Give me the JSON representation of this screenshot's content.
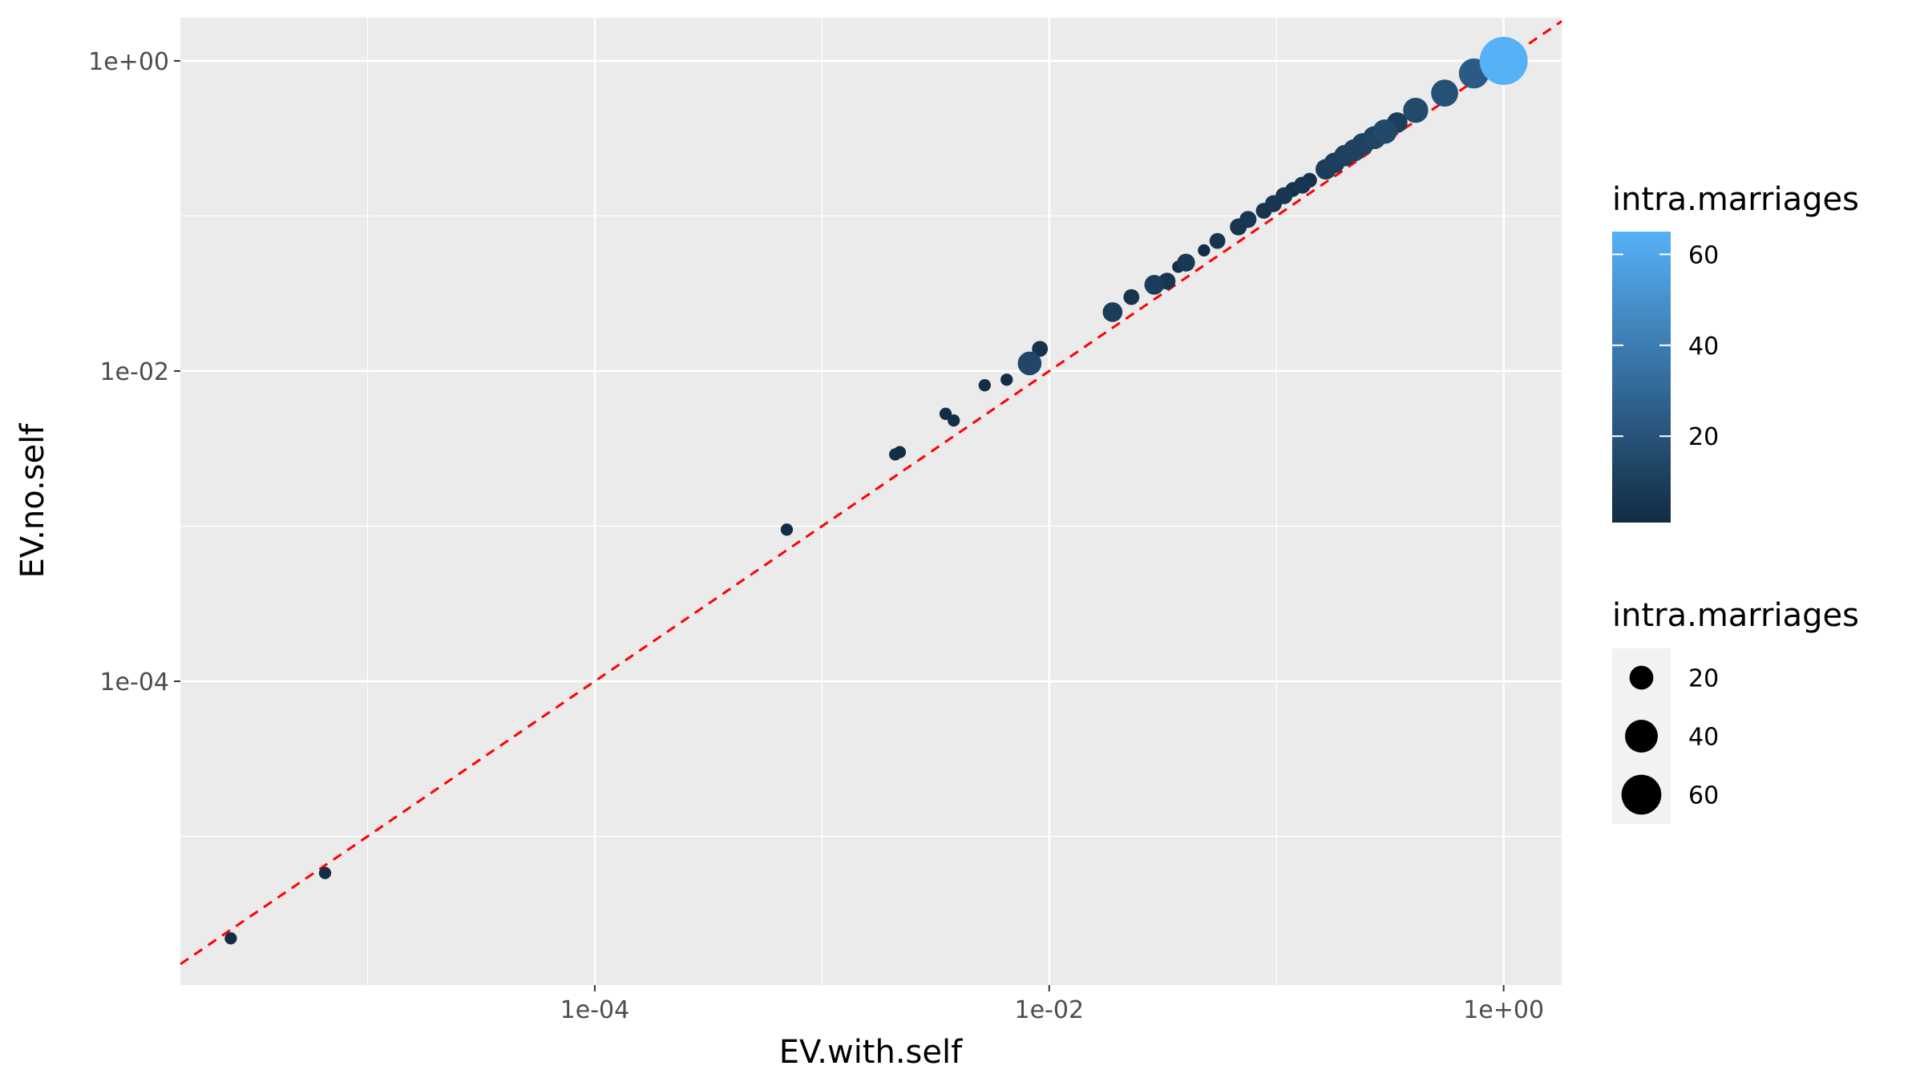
{
  "chart_data": {
    "type": "scatter",
    "xlabel": "EV.with.self",
    "ylabel": "EV.no.self",
    "x_scale": "log10",
    "y_scale": "log10",
    "xlim": [
      1.5e-06,
      1.8
    ],
    "ylim": [
      1.1e-06,
      1.9
    ],
    "x_ticks": [
      {
        "value": 0.0001,
        "label": "1e-04"
      },
      {
        "value": 0.01,
        "label": "1e-02"
      },
      {
        "value": 1,
        "label": "1e+00"
      }
    ],
    "y_ticks": [
      {
        "value": 0.0001,
        "label": "1e-04"
      },
      {
        "value": 0.01,
        "label": "1e-02"
      },
      {
        "value": 1,
        "label": "1e+00"
      }
    ],
    "grid": true,
    "reference_line": {
      "type": "identity",
      "style": "dashed",
      "color": "#ff0000"
    },
    "color_legend": {
      "title": "intra.marriages",
      "placement": "right",
      "low_color": "#132B43",
      "high_color": "#56B1F7",
      "range": [
        1,
        65
      ],
      "breaks": [
        {
          "value": 20,
          "label": "20"
        },
        {
          "value": 40,
          "label": "40"
        },
        {
          "value": 60,
          "label": "60"
        }
      ]
    },
    "size_legend": {
      "title": "intra.marriages",
      "placement": "right",
      "breaks": [
        {
          "value": 20,
          "label": "20"
        },
        {
          "value": 40,
          "label": "40"
        },
        {
          "value": 60,
          "label": "60"
        }
      ]
    },
    "points": [
      {
        "x": 2.5e-06,
        "y": 2.2e-06,
        "m": 2
      },
      {
        "x": 6.5e-06,
        "y": 5.8e-06,
        "m": 2
      },
      {
        "x": 0.0007,
        "y": 0.00095,
        "m": 2
      },
      {
        "x": 0.0021,
        "y": 0.0029,
        "m": 2
      },
      {
        "x": 0.0022,
        "y": 0.003,
        "m": 2
      },
      {
        "x": 0.0035,
        "y": 0.0053,
        "m": 2
      },
      {
        "x": 0.0038,
        "y": 0.0048,
        "m": 2
      },
      {
        "x": 0.0052,
        "y": 0.0081,
        "m": 2
      },
      {
        "x": 0.0065,
        "y": 0.0088,
        "m": 2
      },
      {
        "x": 0.0082,
        "y": 0.0112,
        "m": 14
      },
      {
        "x": 0.0091,
        "y": 0.0139,
        "m": 5
      },
      {
        "x": 0.019,
        "y": 0.024,
        "m": 9
      },
      {
        "x": 0.023,
        "y": 0.03,
        "m": 5
      },
      {
        "x": 0.029,
        "y": 0.036,
        "m": 9
      },
      {
        "x": 0.033,
        "y": 0.038,
        "m": 6
      },
      {
        "x": 0.037,
        "y": 0.047,
        "m": 2
      },
      {
        "x": 0.04,
        "y": 0.05,
        "m": 7
      },
      {
        "x": 0.048,
        "y": 0.06,
        "m": 2
      },
      {
        "x": 0.055,
        "y": 0.069,
        "m": 5
      },
      {
        "x": 0.068,
        "y": 0.085,
        "m": 6
      },
      {
        "x": 0.075,
        "y": 0.095,
        "m": 6
      },
      {
        "x": 0.088,
        "y": 0.108,
        "m": 5
      },
      {
        "x": 0.097,
        "y": 0.12,
        "m": 6
      },
      {
        "x": 0.108,
        "y": 0.135,
        "m": 6
      },
      {
        "x": 0.118,
        "y": 0.148,
        "m": 4
      },
      {
        "x": 0.13,
        "y": 0.158,
        "m": 6
      },
      {
        "x": 0.14,
        "y": 0.17,
        "m": 4
      },
      {
        "x": 0.165,
        "y": 0.2,
        "m": 10
      },
      {
        "x": 0.18,
        "y": 0.22,
        "m": 10
      },
      {
        "x": 0.2,
        "y": 0.245,
        "m": 11
      },
      {
        "x": 0.22,
        "y": 0.265,
        "m": 12
      },
      {
        "x": 0.24,
        "y": 0.29,
        "m": 12
      },
      {
        "x": 0.27,
        "y": 0.32,
        "m": 13
      },
      {
        "x": 0.3,
        "y": 0.35,
        "m": 15
      },
      {
        "x": 0.34,
        "y": 0.4,
        "m": 10
      },
      {
        "x": 0.41,
        "y": 0.48,
        "m": 16
      },
      {
        "x": 0.55,
        "y": 0.62,
        "m": 19
      },
      {
        "x": 0.74,
        "y": 0.83,
        "m": 24
      },
      {
        "x": 1.0,
        "y": 1.0,
        "m": 65
      }
    ]
  }
}
